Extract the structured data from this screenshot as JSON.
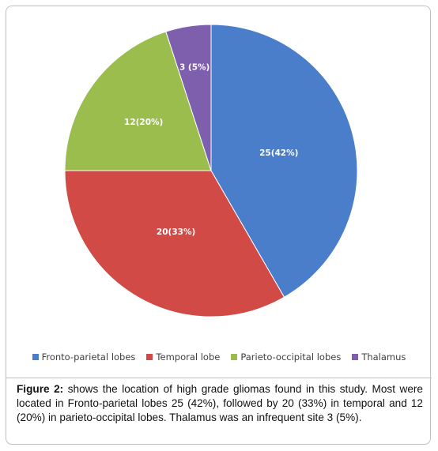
{
  "chart_data": {
    "type": "pie",
    "categories": [
      "Fronto-parietal lobes",
      "Temporal lobe",
      "Parieto-occipital lobes",
      "Thalamus"
    ],
    "values": [
      25,
      20,
      12,
      3
    ],
    "data_labels": [
      "25(42%)",
      "20(33%)",
      "12(20%)",
      "3 (5%)"
    ],
    "colors": [
      "#4a7ecb",
      "#d14a46",
      "#9bbd4e",
      "#7e5fae"
    ],
    "legend_position": "bottom",
    "title": ""
  },
  "caption": {
    "label": "Figure 2:",
    "text": " shows the location of high grade gliomas found in this study. Most were located in Fronto-parietal lobes 25 (42%), followed by 20 (33%) in temporal and 12 (20%) in parieto-occipital lobes. Thalamus was an infrequent site 3 (5%)."
  }
}
